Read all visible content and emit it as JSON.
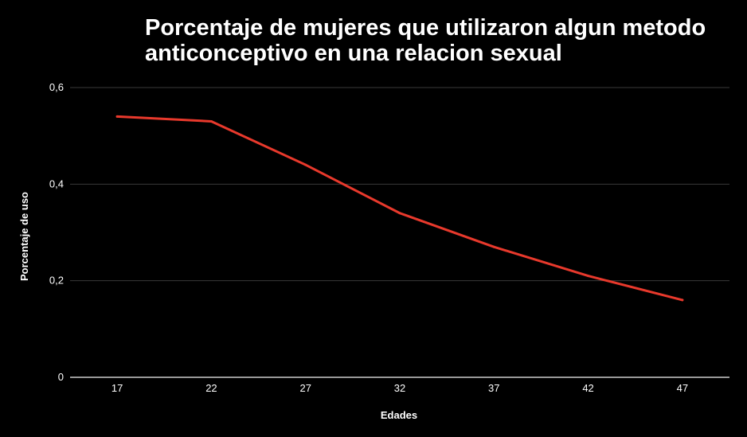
{
  "chart_data": {
    "type": "line",
    "title_lines": [
      "Porcentaje de mujeres que utilizaron algun metodo",
      "anticonceptivo en una relacion sexual"
    ],
    "xlabel": "Edades",
    "ylabel": "Porcentaje de uso",
    "categories": [
      "17",
      "22",
      "27",
      "32",
      "37",
      "42",
      "47"
    ],
    "series": [
      {
        "values": [
          0.54,
          0.53,
          0.44,
          0.34,
          0.27,
          0.21,
          0.16
        ]
      }
    ],
    "ylim": [
      0,
      0.6
    ],
    "yticks": [
      {
        "value": 0,
        "label": "0"
      },
      {
        "value": 0.2,
        "label": "0,2"
      },
      {
        "value": 0.4,
        "label": "0,4"
      },
      {
        "value": 0.6,
        "label": "0,6"
      }
    ],
    "grid": true,
    "legend": "none",
    "colors": {
      "background": "#000000",
      "line": "#e8392c",
      "grid": "#3a3a3a",
      "axis": "#cccccc",
      "text": "#ffffff"
    }
  }
}
